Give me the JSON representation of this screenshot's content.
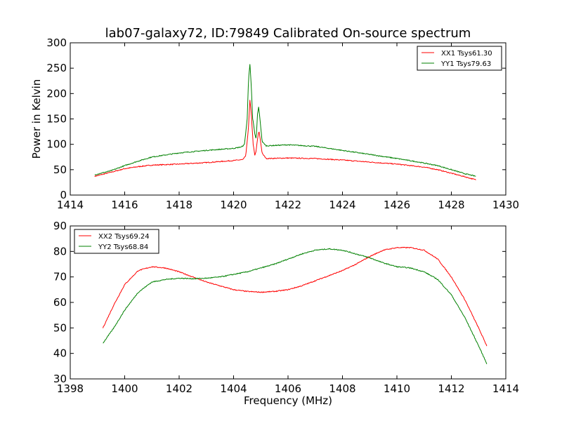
{
  "figure_title": "lab07-galaxy72, ID:79849 Calibrated On-source spectrum",
  "chart_data": [
    {
      "type": "line",
      "ylabel": "Power in Kelvin",
      "xlabel": "",
      "xlim": [
        1414,
        1430
      ],
      "ylim": [
        0,
        300
      ],
      "xticks": [
        1414,
        1416,
        1418,
        1420,
        1422,
        1424,
        1426,
        1428,
        1430
      ],
      "yticks": [
        0,
        50,
        100,
        150,
        200,
        250,
        300
      ],
      "legend_position": "top-right",
      "grid": false,
      "series": [
        {
          "name": "XX1 Tsys61.30",
          "color": "#ff0000",
          "points": [
            [
              1414.9,
              37
            ],
            [
              1415.5,
              45
            ],
            [
              1416.0,
              52
            ],
            [
              1416.5,
              56
            ],
            [
              1417.0,
              59
            ],
            [
              1418.0,
              61
            ],
            [
              1419.0,
              64
            ],
            [
              1420.0,
              68
            ],
            [
              1420.35,
              70
            ],
            [
              1420.45,
              78
            ],
            [
              1420.55,
              135
            ],
            [
              1420.6,
              187
            ],
            [
              1420.65,
              160
            ],
            [
              1420.72,
              100
            ],
            [
              1420.78,
              78
            ],
            [
              1420.82,
              85
            ],
            [
              1420.88,
              110
            ],
            [
              1420.93,
              127
            ],
            [
              1420.98,
              110
            ],
            [
              1421.05,
              82
            ],
            [
              1421.2,
              72
            ],
            [
              1422.0,
              73
            ],
            [
              1423.0,
              72
            ],
            [
              1424.0,
              69
            ],
            [
              1425.0,
              65
            ],
            [
              1426.0,
              61
            ],
            [
              1427.0,
              55
            ],
            [
              1427.5,
              50
            ],
            [
              1428.0,
              43
            ],
            [
              1428.5,
              36
            ],
            [
              1428.9,
              30
            ]
          ]
        },
        {
          "name": "YY1 Tsys79.63",
          "color": "#008000",
          "points": [
            [
              1414.9,
              40
            ],
            [
              1415.5,
              48
            ],
            [
              1416.0,
              58
            ],
            [
              1416.5,
              67
            ],
            [
              1417.0,
              75
            ],
            [
              1418.0,
              83
            ],
            [
              1419.0,
              88
            ],
            [
              1420.0,
              92
            ],
            [
              1420.3,
              95
            ],
            [
              1420.4,
              100
            ],
            [
              1420.5,
              150
            ],
            [
              1420.55,
              230
            ],
            [
              1420.6,
              258
            ],
            [
              1420.65,
              215
            ],
            [
              1420.7,
              150
            ],
            [
              1420.73,
              142
            ],
            [
              1420.78,
              120
            ],
            [
              1420.83,
              110
            ],
            [
              1420.88,
              160
            ],
            [
              1420.92,
              173
            ],
            [
              1420.96,
              155
            ],
            [
              1421.05,
              105
            ],
            [
              1421.2,
              97
            ],
            [
              1422.0,
              99
            ],
            [
              1423.0,
              96
            ],
            [
              1424.0,
              88
            ],
            [
              1425.0,
              80
            ],
            [
              1426.0,
              72
            ],
            [
              1426.8,
              65
            ],
            [
              1427.5,
              58
            ],
            [
              1428.0,
              50
            ],
            [
              1428.5,
              42
            ],
            [
              1428.9,
              37
            ]
          ]
        }
      ]
    },
    {
      "type": "line",
      "ylabel": "",
      "xlabel": "Frequency (MHz)",
      "xlim": [
        1398,
        1414
      ],
      "ylim": [
        30,
        90
      ],
      "xticks": [
        1398,
        1400,
        1402,
        1404,
        1406,
        1408,
        1410,
        1412,
        1414
      ],
      "yticks": [
        30,
        40,
        50,
        60,
        70,
        80,
        90
      ],
      "legend_position": "top-left",
      "grid": false,
      "series": [
        {
          "name": "XX2 Tsys69.24",
          "color": "#ff0000",
          "points": [
            [
              1399.2,
              50
            ],
            [
              1399.6,
              59
            ],
            [
              1400.0,
              67
            ],
            [
              1400.5,
              72.5
            ],
            [
              1401.0,
              74
            ],
            [
              1401.5,
              73.5
            ],
            [
              1402.0,
              72
            ],
            [
              1402.5,
              70
            ],
            [
              1403.0,
              68
            ],
            [
              1403.5,
              66.5
            ],
            [
              1404.0,
              65
            ],
            [
              1404.5,
              64.3
            ],
            [
              1405.0,
              64
            ],
            [
              1405.5,
              64.3
            ],
            [
              1406.0,
              65
            ],
            [
              1406.5,
              66.5
            ],
            [
              1407.0,
              68.5
            ],
            [
              1407.5,
              70.5
            ],
            [
              1408.0,
              72.5
            ],
            [
              1408.5,
              75
            ],
            [
              1409.0,
              78
            ],
            [
              1409.5,
              80.5
            ],
            [
              1410.0,
              81.5
            ],
            [
              1410.5,
              81.5
            ],
            [
              1411.0,
              80.5
            ],
            [
              1411.5,
              77
            ],
            [
              1412.0,
              70
            ],
            [
              1412.5,
              61
            ],
            [
              1413.0,
              50
            ],
            [
              1413.3,
              43
            ]
          ]
        },
        {
          "name": "YY2 Tsys68.84",
          "color": "#008000",
          "points": [
            [
              1399.2,
              44
            ],
            [
              1399.6,
              50
            ],
            [
              1400.0,
              57
            ],
            [
              1400.5,
              64
            ],
            [
              1401.0,
              68
            ],
            [
              1401.5,
              69
            ],
            [
              1402.0,
              69.5
            ],
            [
              1402.5,
              69.3
            ],
            [
              1403.0,
              69.5
            ],
            [
              1403.5,
              70
            ],
            [
              1404.0,
              71
            ],
            [
              1404.5,
              72
            ],
            [
              1405.0,
              73.5
            ],
            [
              1405.5,
              75
            ],
            [
              1406.0,
              77
            ],
            [
              1406.5,
              79
            ],
            [
              1407.0,
              80.5
            ],
            [
              1407.5,
              81
            ],
            [
              1408.0,
              80.5
            ],
            [
              1408.5,
              79
            ],
            [
              1409.0,
              77.5
            ],
            [
              1409.5,
              75.5
            ],
            [
              1410.0,
              74
            ],
            [
              1410.5,
              73.5
            ],
            [
              1411.0,
              72
            ],
            [
              1411.5,
              69
            ],
            [
              1412.0,
              63
            ],
            [
              1412.5,
              54
            ],
            [
              1413.0,
              43
            ],
            [
              1413.3,
              36
            ]
          ]
        }
      ]
    }
  ]
}
